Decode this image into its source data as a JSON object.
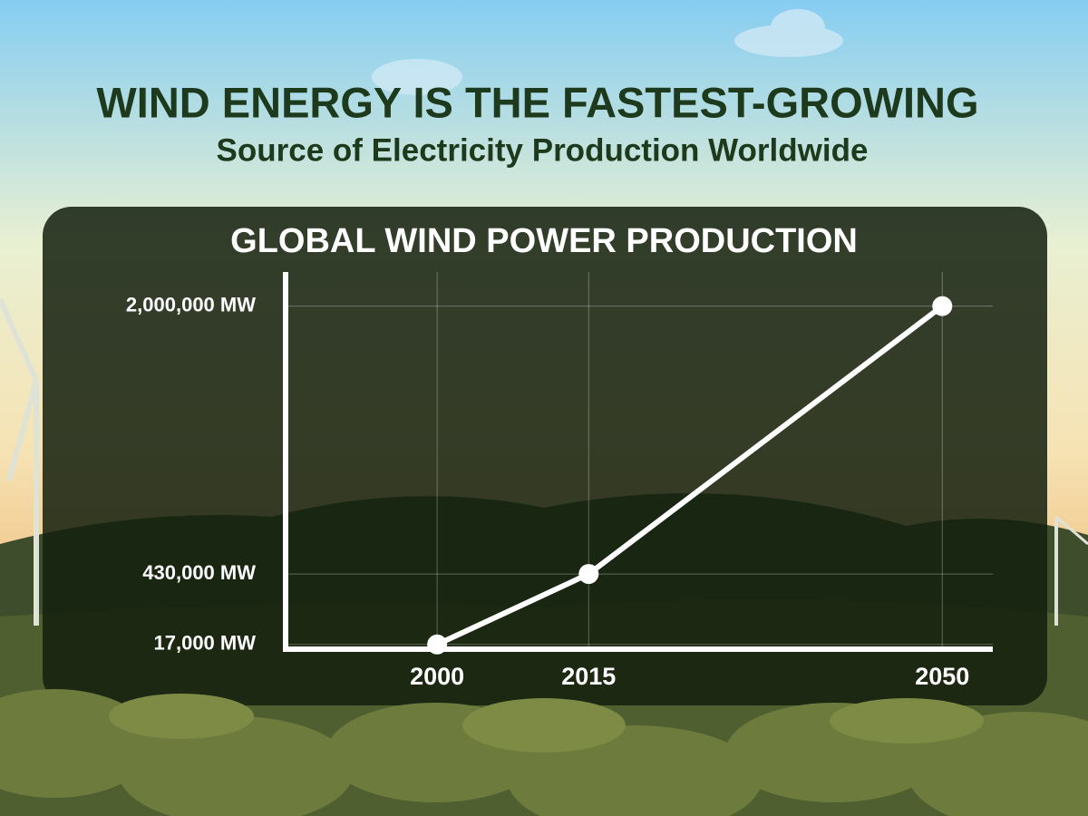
{
  "header": {
    "title": "WIND ENERGY IS THE FASTEST-GROWING",
    "subtitle": "Source of Electricity Production Worldwide"
  },
  "chart_data": {
    "type": "line",
    "title": "GLOBAL WIND POWER PRODUCTION",
    "x": [
      2000,
      2015,
      2050
    ],
    "series": [
      {
        "color": "#ffffff",
        "values": [
          17000,
          430000,
          2000000
        ]
      }
    ],
    "xlim": [
      1985,
      2055
    ],
    "xticks": [
      2000,
      2015,
      2050
    ],
    "ylim": [
      0,
      2200000
    ],
    "yticks": [
      {
        "value": 17000,
        "label": "17,000 MW"
      },
      {
        "value": 430000,
        "label": "430,000 MW"
      },
      {
        "value": 2000000,
        "label": "2,000,000 MW"
      }
    ],
    "grid": true
  }
}
